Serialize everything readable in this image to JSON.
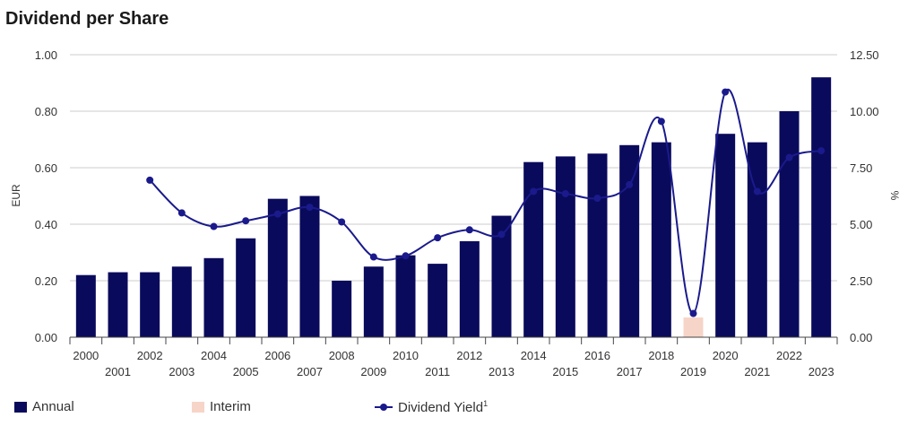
{
  "title": "Dividend per Share",
  "colors": {
    "annual": "#0a0a5c",
    "interim": "#f7d4c8",
    "yield": "#1a1a8c",
    "grid": "#cccccc",
    "axis": "#444444"
  },
  "chart_data": {
    "type": "bar",
    "title": "Dividend per Share",
    "categories": [
      "2000",
      "2001",
      "2002",
      "2003",
      "2004",
      "2005",
      "2006",
      "2007",
      "2008",
      "2009",
      "2010",
      "2011",
      "2012",
      "2013",
      "2014",
      "2015",
      "2016",
      "2017",
      "2018",
      "2019",
      "2020",
      "2021",
      "2022",
      "2023"
    ],
    "ylabel": "EUR",
    "y2label": "%",
    "ylim": [
      0,
      1.0
    ],
    "y2lim": [
      0,
      12.5
    ],
    "yticks": [
      "0.00",
      "0.20",
      "0.40",
      "0.60",
      "0.80",
      "1.00"
    ],
    "y2ticks": [
      "0.00",
      "2.50",
      "5.00",
      "7.50",
      "10.00",
      "12.50"
    ],
    "grid": true,
    "legend_position": "bottom",
    "series": [
      {
        "name": "Annual",
        "kind": "bar",
        "values": [
          0.22,
          0.23,
          0.23,
          0.25,
          0.28,
          0.35,
          0.49,
          0.5,
          0.2,
          0.25,
          0.29,
          0.26,
          0.34,
          0.43,
          0.62,
          0.64,
          0.65,
          0.68,
          0.69,
          0,
          0.72,
          0.69,
          0.8,
          0.92
        ]
      },
      {
        "name": "Interim",
        "kind": "bar",
        "values": [
          0,
          0,
          0,
          0,
          0,
          0,
          0,
          0,
          0,
          0,
          0,
          0,
          0,
          0,
          0,
          0,
          0,
          0,
          0,
          0.07,
          0,
          0,
          0,
          0
        ]
      },
      {
        "name": "Dividend Yield",
        "name_sup": "1",
        "kind": "line",
        "axis": "right",
        "values": [
          null,
          null,
          6.95,
          5.5,
          4.9,
          5.15,
          5.45,
          5.75,
          5.1,
          3.55,
          3.6,
          4.4,
          4.75,
          4.55,
          6.45,
          6.35,
          6.15,
          6.75,
          9.55,
          1.05,
          10.85,
          6.45,
          7.95,
          8.25
        ]
      }
    ]
  },
  "legend": {
    "annual": "Annual",
    "interim": "Interim",
    "yield": "Dividend Yield",
    "yield_sup": "1"
  }
}
